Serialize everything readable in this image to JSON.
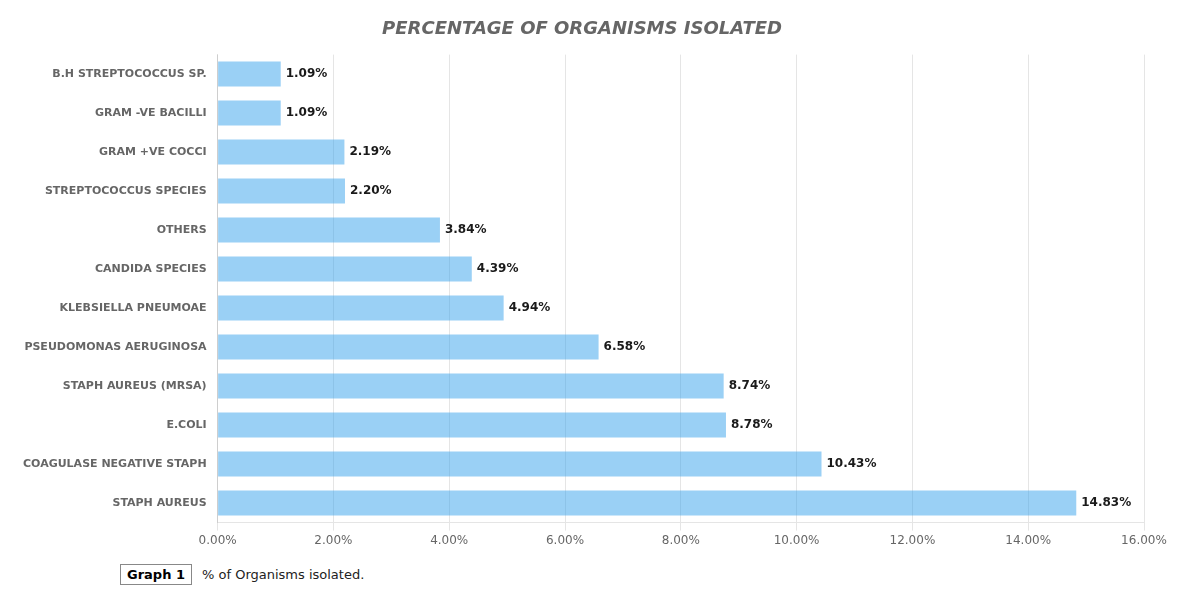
{
  "chart_data": {
    "type": "bar",
    "orientation": "horizontal",
    "title": "PERCENTAGE OF ORGANISMS ISOLATED",
    "categories": [
      "B.H STREPTOCOCCUS SP.",
      "GRAM -VE BACILLI",
      "GRAM +VE COCCI",
      "STREPTOCOCCUS SPECIES",
      "OTHERS",
      "CANDIDA SPECIES",
      "KLEBSIELLA PNEUMOAE",
      "PSEUDOMONAS AERUGINOSA",
      "STAPH AUREUS (MRSA)",
      "E.COLI",
      "COAGULASE NEGATIVE STAPH",
      "STAPH AUREUS"
    ],
    "values": [
      1.09,
      1.09,
      2.19,
      2.2,
      3.84,
      4.39,
      4.94,
      6.58,
      8.74,
      8.78,
      10.43,
      14.83
    ],
    "value_labels": [
      "1.09%",
      "1.09%",
      "2.19%",
      "2.20%",
      "3.84%",
      "4.39%",
      "4.94%",
      "6.58%",
      "8.74%",
      "8.78%",
      "10.43%",
      "14.83%"
    ],
    "data_labels": true,
    "xlim": [
      0,
      16.0
    ],
    "xticks": [
      {
        "value": 0,
        "label": "0.00%"
      },
      {
        "value": 2,
        "label": "2.00%"
      },
      {
        "value": 4,
        "label": "4.00%"
      },
      {
        "value": 6,
        "label": "6.00%"
      },
      {
        "value": 8,
        "label": "8.00%"
      },
      {
        "value": 10,
        "label": "10.00%"
      },
      {
        "value": 12,
        "label": "12.00%"
      },
      {
        "value": 14,
        "label": "14.00%"
      },
      {
        "value": 16,
        "label": "16.00%"
      }
    ],
    "grid": true,
    "annotations": [
      "Graph 1",
      "% of Organisms isolated."
    ]
  }
}
